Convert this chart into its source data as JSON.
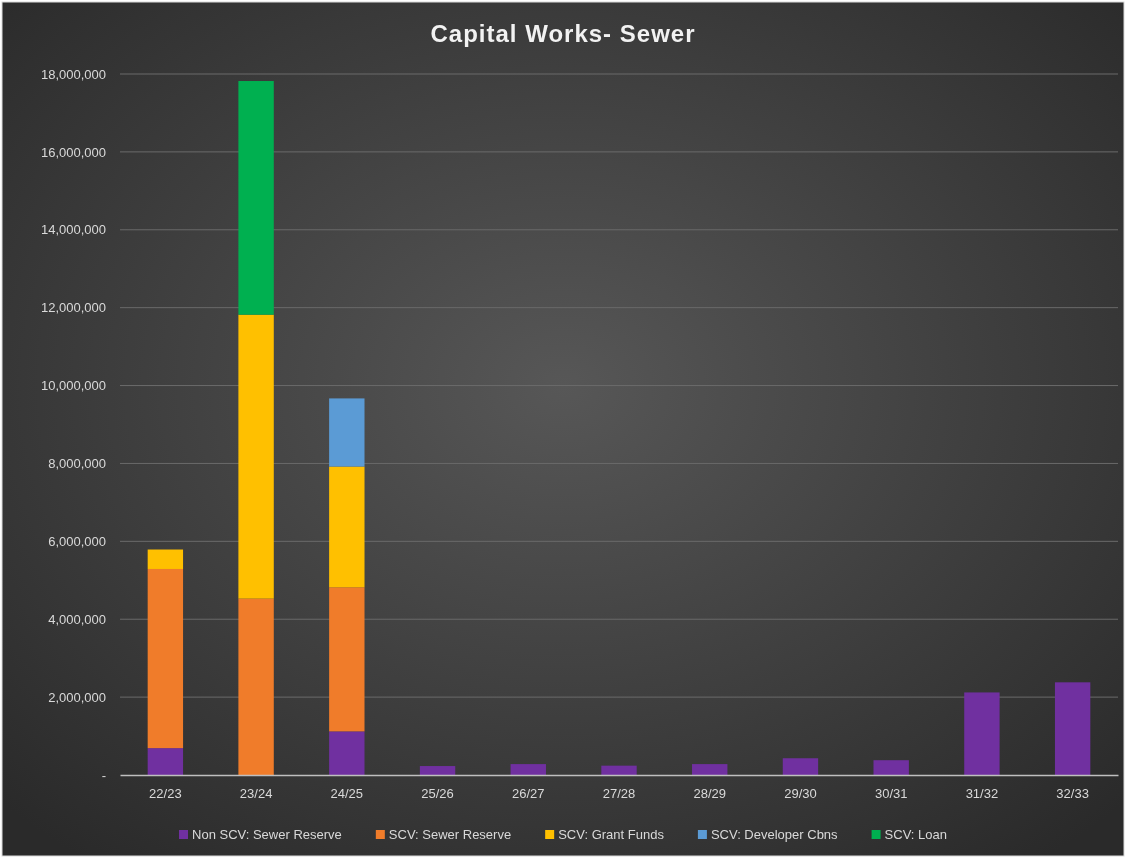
{
  "chart_data": {
    "type": "bar",
    "title": "Capital Works- Sewer",
    "stacked": true,
    "categories": [
      "22/23",
      "23/24",
      "24/25",
      "25/26",
      "26/27",
      "27/28",
      "28/29",
      "29/30",
      "30/31",
      "31/32",
      "32/33"
    ],
    "series": [
      {
        "name": "Non SCV: Sewer Reserve",
        "color": "#7030a0",
        "values": [
          690000,
          0,
          1120000,
          230000,
          280000,
          240000,
          280000,
          430000,
          380000,
          2120000,
          2380000
        ]
      },
      {
        "name": "SCV: Sewer Reserve",
        "color": "#f07c2a",
        "values": [
          4600000,
          4530000,
          3700000,
          0,
          0,
          0,
          0,
          0,
          0,
          0,
          0
        ]
      },
      {
        "name": "SCV: Grant Funds",
        "color": "#ffc000",
        "values": [
          500000,
          7290000,
          3100000,
          0,
          0,
          0,
          0,
          0,
          0,
          0,
          0
        ]
      },
      {
        "name": "SCV: Developer Cbns",
        "color": "#5b9bd5",
        "values": [
          0,
          0,
          1750000,
          0,
          0,
          0,
          0,
          0,
          0,
          0,
          0
        ]
      },
      {
        "name": "SCV: Loan",
        "color": "#00b050",
        "values": [
          0,
          6000000,
          0,
          0,
          0,
          0,
          0,
          0,
          0,
          0,
          0
        ]
      }
    ],
    "ylim": [
      0,
      18000000
    ],
    "yticks": [
      {
        "value": 0,
        "label": "-"
      },
      {
        "value": 2000000,
        "label": "2,000,000"
      },
      {
        "value": 4000000,
        "label": "4,000,000"
      },
      {
        "value": 6000000,
        "label": "6,000,000"
      },
      {
        "value": 8000000,
        "label": "8,000,000"
      },
      {
        "value": 10000000,
        "label": "10,000,000"
      },
      {
        "value": 12000000,
        "label": "12,000,000"
      },
      {
        "value": 14000000,
        "label": "14,000,000"
      },
      {
        "value": 16000000,
        "label": "16,000,000"
      },
      {
        "value": 18000000,
        "label": "18,000,000"
      }
    ],
    "grid": "y",
    "legend": "bottom"
  }
}
